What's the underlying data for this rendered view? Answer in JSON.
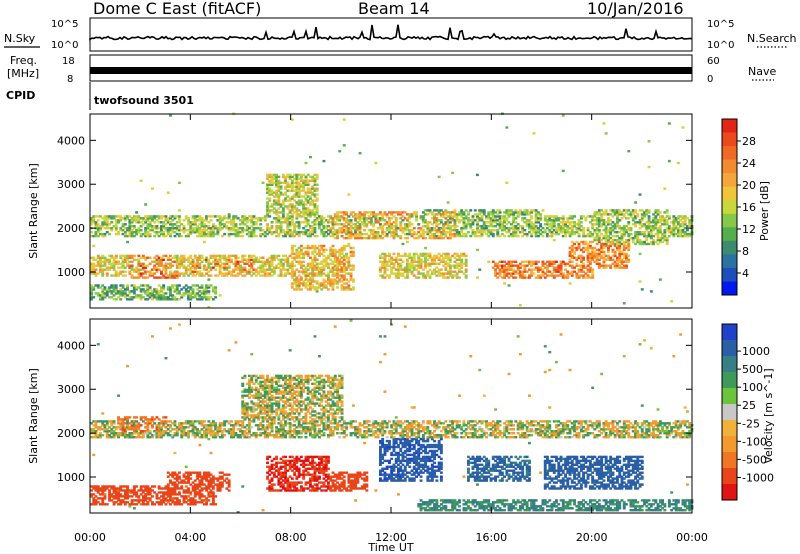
{
  "header": {
    "title": "Dome C East (fitACF)",
    "beam": "Beam 14",
    "date": "10/Jan/2016"
  },
  "param_panels": {
    "nsky_label": "N.Sky",
    "nsearch_label": "N.Search",
    "freq_label_line1": "Freq.",
    "freq_label_line2": "[MHz]",
    "nave_label": "Nave",
    "cpid_label": "CPID",
    "cpid_value": "twofsound 3501",
    "noise_left_top": "10^5",
    "noise_left_bottom": "10^0",
    "noise_right_top": "10^5",
    "noise_right_bottom": "10^0",
    "freq_left_top": "18",
    "freq_left_bottom": "8",
    "nave_right_top": "60",
    "nave_right_bottom": "0"
  },
  "chart_data": [
    {
      "type": "heatmap",
      "name": "power",
      "xlabel": "",
      "ylabel": "Slant Range [km]",
      "xlim": [
        0,
        24
      ],
      "ylim": [
        180,
        4600
      ],
      "yticks": [
        "1000",
        "2000",
        "3000",
        "4000"
      ],
      "colorbar": {
        "label": "Power [dB]",
        "ticks": [
          "4",
          "8",
          "12",
          "16",
          "20",
          "24",
          "28"
        ],
        "colors": [
          "#0018f0",
          "#1c4fb8",
          "#2a73a0",
          "#3e8a6e",
          "#55ad4c",
          "#86c84a",
          "#c8d83c",
          "#f0c53c",
          "#f5a63a",
          "#f28a30",
          "#ef6a26",
          "#ea4a1e",
          "#e22616"
        ]
      },
      "bands": [
        {
          "t0": 0.0,
          "t1": 24.0,
          "r0": 1800,
          "r1": 2250,
          "v": 14
        },
        {
          "t0": 0.0,
          "t1": 9.5,
          "r0": 900,
          "r1": 1350,
          "v": 18
        },
        {
          "t0": 1.5,
          "t1": 3.5,
          "r0": 850,
          "r1": 1350,
          "v": 26
        },
        {
          "t0": 4.0,
          "t1": 6.5,
          "r0": 950,
          "r1": 1300,
          "v": 25
        },
        {
          "t0": 7.0,
          "t1": 9.0,
          "r0": 1800,
          "r1": 3200,
          "v": 16
        },
        {
          "t0": 8.0,
          "t1": 10.5,
          "r0": 550,
          "r1": 1600,
          "v": 20
        },
        {
          "t0": 9.5,
          "t1": 14.5,
          "r0": 1750,
          "r1": 2350,
          "v": 22
        },
        {
          "t0": 11.5,
          "t1": 15.0,
          "r0": 850,
          "r1": 1400,
          "v": 18
        },
        {
          "t0": 16.0,
          "t1": 20.0,
          "r0": 850,
          "r1": 1250,
          "v": 25
        },
        {
          "t0": 19.0,
          "t1": 21.5,
          "r0": 1050,
          "r1": 1700,
          "v": 24
        },
        {
          "t0": 20.0,
          "t1": 23.0,
          "r0": 1600,
          "r1": 2400,
          "v": 14
        },
        {
          "t0": 0.0,
          "t1": 5.0,
          "r0": 350,
          "r1": 700,
          "v": 12
        },
        {
          "t0": 13.0,
          "t1": 18.0,
          "r0": 1950,
          "r1": 2400,
          "v": 12
        }
      ]
    },
    {
      "type": "heatmap",
      "name": "velocity",
      "xlabel": "Time UT",
      "ylabel": "Slant Range [km]",
      "xlim": [
        0,
        24
      ],
      "ylim": [
        180,
        4600
      ],
      "xticks": [
        "00:00",
        "04:00",
        "08:00",
        "12:00",
        "16:00",
        "20:00",
        "00:00"
      ],
      "yticks": [
        "1000",
        "2000",
        "3000",
        "4000"
      ],
      "colorbar": {
        "label": "Velocity [m s^-1]",
        "ticks": [
          "1000",
          "500",
          "100",
          "25",
          "-25",
          "-100",
          "-500",
          "-1000"
        ],
        "colors": [
          "#1f42c8",
          "#2a5fa6",
          "#357f85",
          "#3f9a5a",
          "#6cc43e",
          "#c8c8c8",
          "#f0b23a",
          "#f29a2e",
          "#ef7624",
          "#e8461a",
          "#e01414"
        ]
      },
      "bands": [
        {
          "t0": 0.0,
          "t1": 24.0,
          "r0": 1850,
          "r1": 2250,
          "v": 0
        },
        {
          "t0": 6.0,
          "t1": 10.0,
          "r0": 1900,
          "r1": 3300,
          "v": 0
        },
        {
          "t0": 0.0,
          "t1": 5.0,
          "r0": 350,
          "r1": 800,
          "v": -200
        },
        {
          "t0": 3.0,
          "t1": 5.5,
          "r0": 650,
          "r1": 1100,
          "v": -300
        },
        {
          "t0": 7.0,
          "t1": 9.5,
          "r0": 650,
          "r1": 1450,
          "v": -500
        },
        {
          "t0": 9.5,
          "t1": 11.0,
          "r0": 650,
          "r1": 1100,
          "v": -300
        },
        {
          "t0": 11.5,
          "t1": 14.0,
          "r0": 900,
          "r1": 1850,
          "v": 400
        },
        {
          "t0": 15.0,
          "t1": 17.5,
          "r0": 900,
          "r1": 1450,
          "v": 150
        },
        {
          "t0": 18.0,
          "t1": 22.0,
          "r0": 700,
          "r1": 1450,
          "v": 200
        },
        {
          "t0": 13.0,
          "t1": 24.0,
          "r0": 200,
          "r1": 450,
          "v": 40
        },
        {
          "t0": 1.0,
          "t1": 3.0,
          "r0": 2000,
          "r1": 2350,
          "v": -100
        }
      ]
    }
  ]
}
